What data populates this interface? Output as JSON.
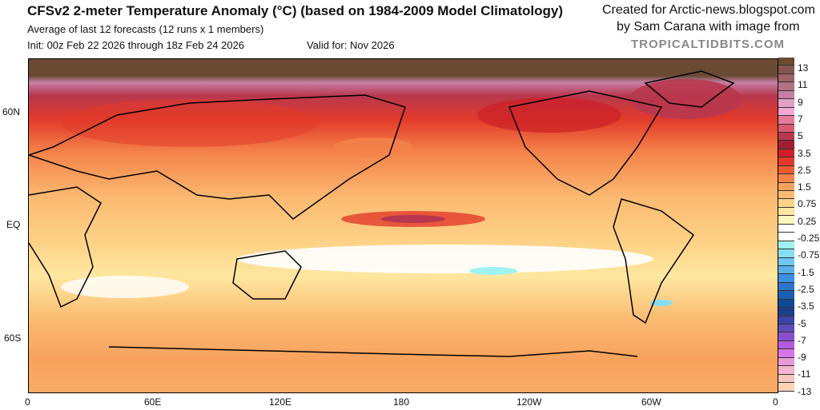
{
  "header": {
    "title": "CFSv2 2-meter Temperature Anomaly (°C) (based on 1984-2009 Model Climatology)",
    "subtitle": "Average of last 12 forecasts (12 runs x 1 members)",
    "init": "Init: 00z Feb 22 2026 through 18z Feb 24 2026",
    "valid": "Valid for: Nov 2026"
  },
  "credit": {
    "line1": "Created for Arctic-news.blogspot.com",
    "line2": "by Sam Carana with image from",
    "line3": "TROPICALTIDBITS.COM"
  },
  "axes": {
    "lon": [
      "0",
      "60E",
      "120E",
      "180",
      "120W",
      "60W",
      "0"
    ],
    "lat": [
      "60N",
      "EQ",
      "60S"
    ]
  },
  "colorbar": {
    "labels": [
      "13",
      "11",
      "9",
      "7",
      "5",
      "3.5",
      "2.5",
      "1.5",
      "0.75",
      "0.25",
      "-0.25",
      "-0.75",
      "-1.5",
      "-2.5",
      "-3.5",
      "-5",
      "-7",
      "-9",
      "-11",
      "-13"
    ],
    "colors": [
      "#6b4a34",
      "#85574f",
      "#9c6369",
      "#b27185",
      "#c680a4",
      "#e4a0c8",
      "#f6a7d6",
      "#e87a9a",
      "#d85a72",
      "#b8374e",
      "#9e1f33",
      "#cc1f26",
      "#e23a2a",
      "#ef5c34",
      "#f4834a",
      "#f8a25e",
      "#fbbb72",
      "#fdd287",
      "#fee7a0",
      "#fff7bc",
      "#ffffff",
      "#ffffff",
      "#9ef3f0",
      "#86def2",
      "#6fc6f0",
      "#5aaeea",
      "#3d8fe0",
      "#2c74cc",
      "#1b5fb0",
      "#0f4a94",
      "#1b3f8c",
      "#3a44a6",
      "#5b4cba",
      "#8a4fd0",
      "#b45ae0",
      "#d874e6",
      "#e99ad8",
      "#f4b5cf",
      "#f7c6c0",
      "#ffd3b8"
    ]
  }
}
